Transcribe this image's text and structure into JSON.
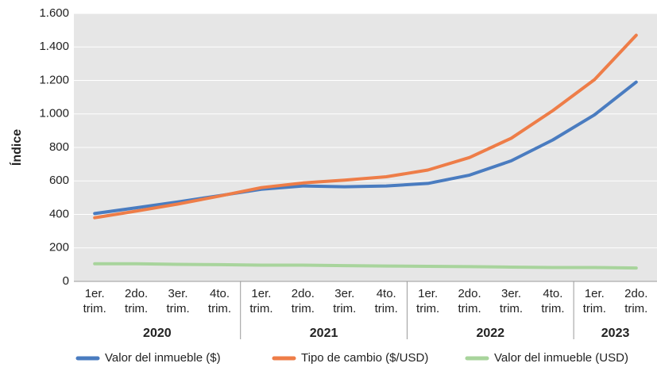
{
  "chart_data": {
    "type": "line",
    "y_label": "Índice",
    "categories": [
      "1er. trim.",
      "2do. trim.",
      "3er. trim.",
      "4to. trim.",
      "1er. trim.",
      "2do. trim.",
      "3er. trim.",
      "4to. trim.",
      "1er. trim.",
      "2do. trim.",
      "3er. trim.",
      "4to. trim.",
      "1er. trim.",
      "2do. trim."
    ],
    "groups": [
      {
        "name": "2020",
        "count": 4
      },
      {
        "name": "2021",
        "count": 4
      },
      {
        "name": "2022",
        "count": 4
      },
      {
        "name": "2023",
        "count": 2
      }
    ],
    "series": [
      {
        "name": "Valor del inmueble ($)",
        "color": "#4a7cc0",
        "values": [
          405,
          440,
          475,
          512,
          550,
          570,
          565,
          570,
          585,
          635,
          720,
          845,
          995,
          1190
        ]
      },
      {
        "name": "Tipo de cambio ($/USD)",
        "color": "#ee7d48",
        "values": [
          380,
          420,
          462,
          510,
          560,
          588,
          605,
          625,
          665,
          740,
          855,
          1020,
          1205,
          1470
        ]
      },
      {
        "name": "Valor del inmueble (USD)",
        "color": "#a8d49c",
        "values": [
          105,
          105,
          102,
          100,
          97,
          97,
          94,
          92,
          90,
          88,
          85,
          83,
          83,
          80
        ]
      }
    ],
    "ylim": [
      0,
      1600
    ],
    "yticks": [
      0,
      200,
      400,
      600,
      800,
      {
        "value": 1000,
        "label": "1.000"
      },
      {
        "value": 1200,
        "label": "1.200"
      },
      {
        "value": 1400,
        "label": "1.400"
      },
      {
        "value": 1600,
        "label": "1.600"
      }
    ],
    "grid": true
  }
}
